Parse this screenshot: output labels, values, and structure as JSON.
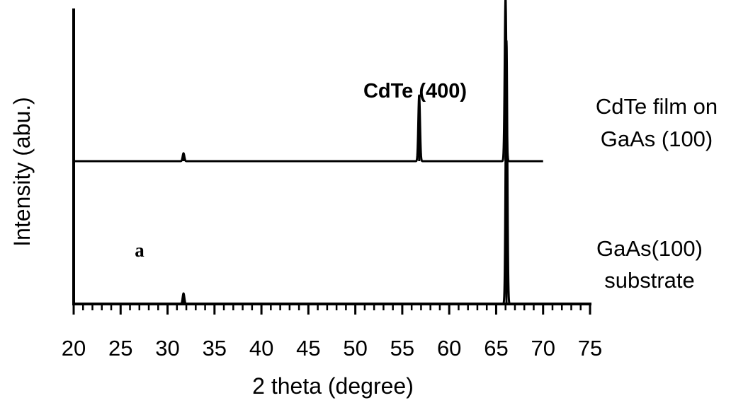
{
  "chart_data": {
    "type": "line",
    "xlabel": "2 theta (degree)",
    "ylabel": "Intensity (abu.)",
    "xlim": [
      20,
      75
    ],
    "xticks": [
      20,
      25,
      30,
      35,
      40,
      45,
      50,
      55,
      60,
      65,
      70,
      75
    ],
    "minor_tick_step": 1,
    "y_ticks_shown": false,
    "grid": false,
    "legend": "none (series labelled at right)",
    "series": [
      {
        "name_lines": [
          "CdTe film on",
          "GaAs (100)"
        ],
        "offset": 1,
        "x_range": [
          20,
          70
        ],
        "peaks": [
          {
            "x": 31.7,
            "height": 0.03
          },
          {
            "x": 56.8,
            "height": 0.25
          },
          {
            "x": 66.0,
            "height": 0.62
          }
        ]
      },
      {
        "name_lines": [
          "GaAs(100)",
          "substrate"
        ],
        "offset": 0,
        "x_range": [
          20,
          75
        ],
        "peaks": [
          {
            "x": 31.7,
            "height": 0.04
          },
          {
            "x": 66.1,
            "height": 1.0
          }
        ]
      }
    ],
    "annotations": [
      {
        "text": "CdTe (400)"
      },
      {
        "text": "a"
      }
    ]
  }
}
